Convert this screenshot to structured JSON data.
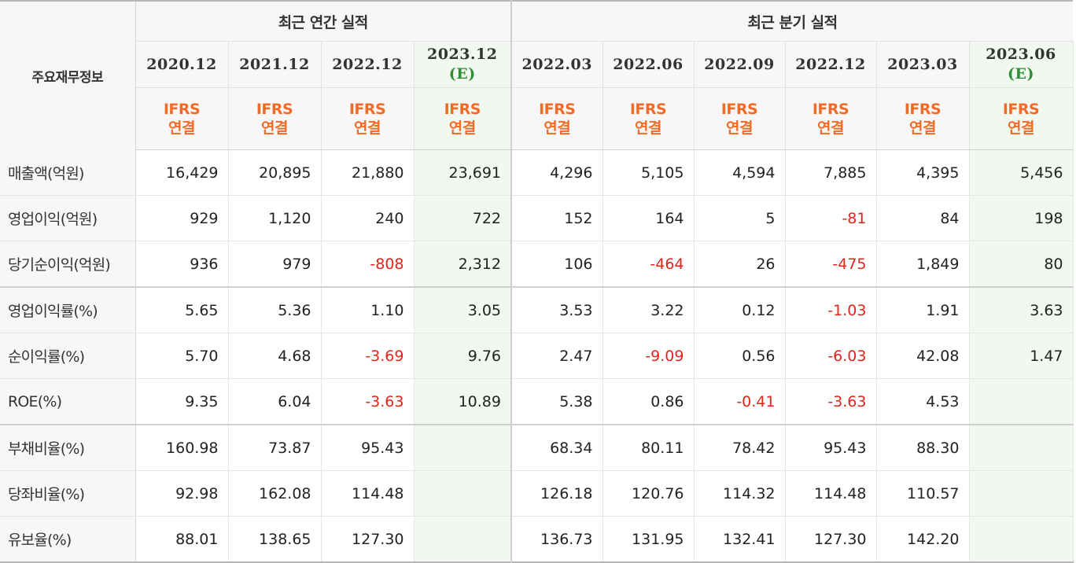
{
  "header": {
    "row_label": "주요재무정보",
    "annual_group": "최근 연간 실적",
    "quarterly_group": "최근 분기 실적",
    "periods": [
      {
        "label": "2020.12",
        "est": ""
      },
      {
        "label": "2021.12",
        "est": ""
      },
      {
        "label": "2022.12",
        "est": ""
      },
      {
        "label": "2023.12",
        "est": "(E)"
      },
      {
        "label": "2022.03",
        "est": ""
      },
      {
        "label": "2022.06",
        "est": ""
      },
      {
        "label": "2022.09",
        "est": ""
      },
      {
        "label": "2022.12",
        "est": ""
      },
      {
        "label": "2023.03",
        "est": ""
      },
      {
        "label": "2023.06",
        "est": "(E)"
      }
    ],
    "basis": [
      {
        "line1": "IFRS",
        "line2": "연결"
      },
      {
        "line1": "IFRS",
        "line2": "연결"
      },
      {
        "line1": "IFRS",
        "line2": "연결"
      },
      {
        "line1": "IFRS",
        "line2": "연결"
      },
      {
        "line1": "IFRS",
        "line2": "연결"
      },
      {
        "line1": "IFRS",
        "line2": "연결"
      },
      {
        "line1": "IFRS",
        "line2": "연결"
      },
      {
        "line1": "IFRS",
        "line2": "연결"
      },
      {
        "line1": "IFRS",
        "line2": "연결"
      },
      {
        "line1": "IFRS",
        "line2": "연결"
      }
    ]
  },
  "rows": [
    {
      "label": "매출액(억원)",
      "values": [
        "16,429",
        "20,895",
        "21,880",
        "23,691",
        "4,296",
        "5,105",
        "4,594",
        "7,885",
        "4,395",
        "5,456"
      ]
    },
    {
      "label": "영업이익(억원)",
      "values": [
        "929",
        "1,120",
        "240",
        "722",
        "152",
        "164",
        "5",
        "-81",
        "84",
        "198"
      ]
    },
    {
      "label": "당기순이익(억원)",
      "values": [
        "936",
        "979",
        "-808",
        "2,312",
        "106",
        "-464",
        "26",
        "-475",
        "1,849",
        "80"
      ]
    },
    {
      "label": "영업이익률(%)",
      "values": [
        "5.65",
        "5.36",
        "1.10",
        "3.05",
        "3.53",
        "3.22",
        "0.12",
        "-1.03",
        "1.91",
        "3.63"
      ]
    },
    {
      "label": "순이익률(%)",
      "values": [
        "5.70",
        "4.68",
        "-3.69",
        "9.76",
        "2.47",
        "-9.09",
        "0.56",
        "-6.03",
        "42.08",
        "1.47"
      ]
    },
    {
      "label": "ROE(%)",
      "values": [
        "9.35",
        "6.04",
        "-3.63",
        "10.89",
        "5.38",
        "0.86",
        "-0.41",
        "-3.63",
        "4.53",
        ""
      ]
    },
    {
      "label": "부채비율(%)",
      "values": [
        "160.98",
        "73.87",
        "95.43",
        "",
        "68.34",
        "80.11",
        "78.42",
        "95.43",
        "88.30",
        ""
      ]
    },
    {
      "label": "당좌비율(%)",
      "values": [
        "92.98",
        "162.08",
        "114.48",
        "",
        "126.18",
        "120.76",
        "114.32",
        "114.48",
        "110.57",
        ""
      ]
    },
    {
      "label": "유보율(%)",
      "values": [
        "88.01",
        "138.65",
        "127.30",
        "",
        "136.73",
        "131.95",
        "132.41",
        "127.30",
        "142.20",
        ""
      ]
    }
  ],
  "colors": {
    "negative": "#e3241b",
    "ifrs_accent": "#f06a28",
    "estimate_text": "#2d8f35",
    "estimate_bg": "#f0f8ef"
  }
}
